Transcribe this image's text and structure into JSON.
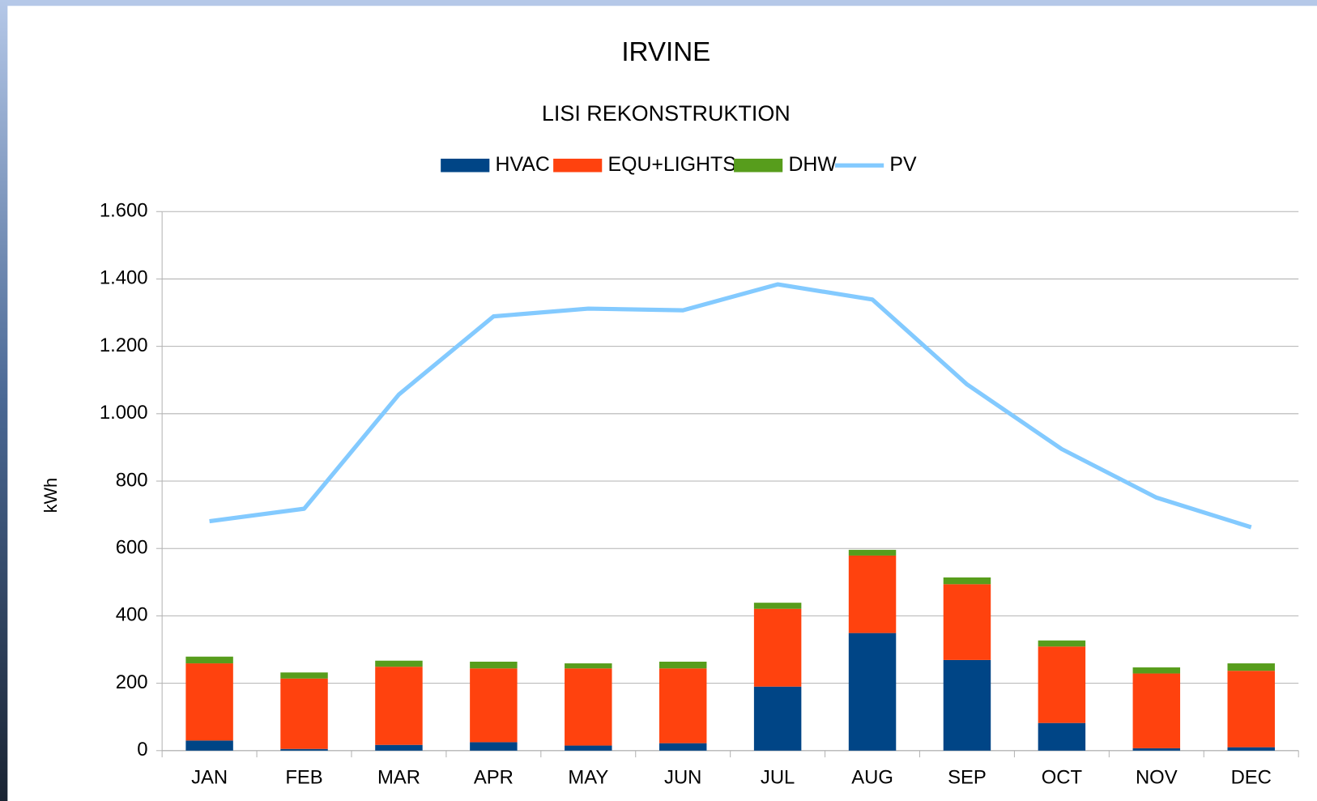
{
  "chart_data": {
    "type": "bar-line",
    "title": "IRVINE",
    "subtitle": "LISI REKONSTRUKTION",
    "y_label": "kWh",
    "categories": [
      "JAN",
      "FEB",
      "MAR",
      "APR",
      "MAY",
      "JUN",
      "JUL",
      "AUG",
      "SEP",
      "OCT",
      "NOV",
      "DEC"
    ],
    "series": [
      {
        "name": "HVAC",
        "type": "bar",
        "color": "#004586",
        "values": [
          30,
          5,
          17,
          25,
          15,
          22,
          190,
          349,
          269,
          82,
          7,
          10
        ]
      },
      {
        "name": "EQU+LIGHTS",
        "type": "bar",
        "color": "#ff420e",
        "values": [
          229,
          209,
          232,
          219,
          229,
          222,
          231,
          230,
          225,
          227,
          222,
          227
        ]
      },
      {
        "name": "DHW",
        "type": "bar",
        "color": "#579d1c",
        "values": [
          20,
          18,
          18,
          20,
          15,
          20,
          18,
          17,
          20,
          18,
          18,
          22
        ]
      },
      {
        "name": "PV",
        "type": "line",
        "color": "#83caff",
        "values": [
          681,
          718,
          1057,
          1289,
          1312,
          1307,
          1384,
          1339,
          1087,
          895,
          751,
          663
        ]
      }
    ],
    "ylim": [
      0,
      1600
    ],
    "yticks": [
      0,
      200,
      400,
      600,
      800,
      {
        "value": 1000,
        "label": "1.000"
      },
      {
        "value": 1200,
        "label": "1.200"
      },
      {
        "value": 1400,
        "label": "1.400"
      },
      {
        "value": 1600,
        "label": "1.600"
      }
    ],
    "grid": true,
    "stacked": true,
    "legend": "top"
  }
}
